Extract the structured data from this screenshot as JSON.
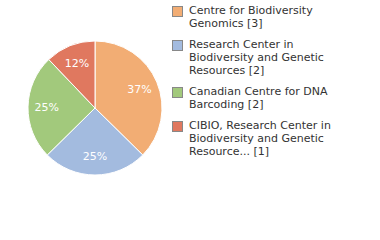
{
  "chart_data": {
    "type": "pie",
    "categories": [
      "Centre for Biodiversity Genomics [3]",
      "Research Center in Biodiversity and Genetic Resources [2]",
      "Canadian Centre for DNA Barcoding [2]",
      "CIBIO, Research Center in Biodiversity and Genetic Resource... [1]"
    ],
    "values": [
      37,
      25,
      25,
      12
    ],
    "value_labels": [
      "37%",
      "25%",
      "25%",
      "12%"
    ],
    "colors": [
      "#f2ad74",
      "#a3bbdf",
      "#a2c97c",
      "#e0785f"
    ],
    "data_labels": true,
    "legend": "right"
  }
}
